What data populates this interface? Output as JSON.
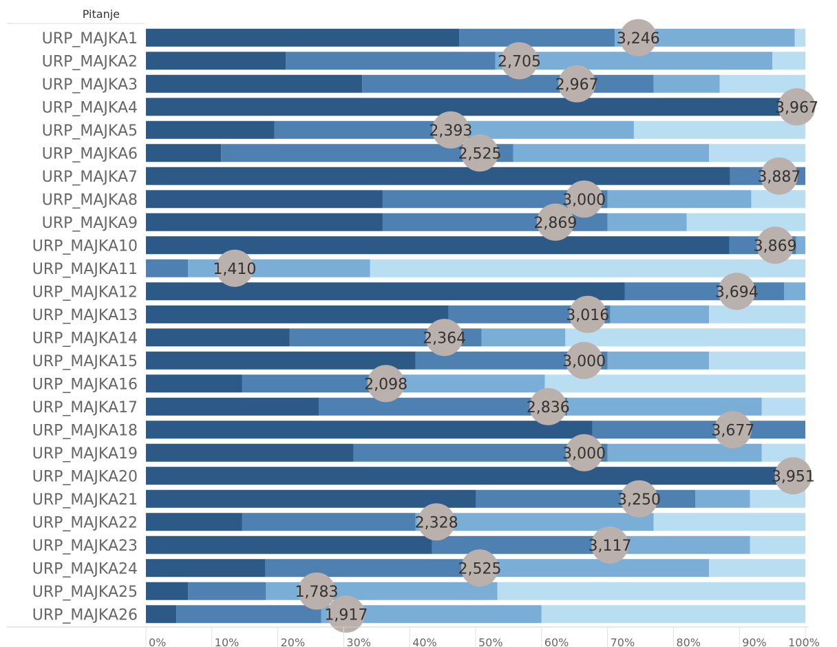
{
  "header": {
    "row_field_label": "Pitanje"
  },
  "chart_data": {
    "type": "bar",
    "orientation": "horizontal",
    "stacked": "percent",
    "categories": [
      "URP_MAJKA1",
      "URP_MAJKA2",
      "URP_MAJKA3",
      "URP_MAJKA4",
      "URP_MAJKA5",
      "URP_MAJKA6",
      "URP_MAJKA7",
      "URP_MAJKA8",
      "URP_MAJKA9",
      "URP_MAJKA10",
      "URP_MAJKA11",
      "URP_MAJKA12",
      "URP_MAJKA13",
      "URP_MAJKA14",
      "URP_MAJKA15",
      "URP_MAJKA16",
      "URP_MAJKA17",
      "URP_MAJKA18",
      "URP_MAJKA19",
      "URP_MAJKA20",
      "URP_MAJKA21",
      "URP_MAJKA22",
      "URP_MAJKA23",
      "URP_MAJKA24",
      "URP_MAJKA25",
      "URP_MAJKA26"
    ],
    "segment_colors": [
      "#2c5985",
      "#4e81b2",
      "#7aaed6",
      "#b9ddf1"
    ],
    "segments": [
      [
        47.5,
        71.1,
        0,
        0
      ],
      [
        21.2,
        53.0,
        95.0,
        100
      ],
      [
        32.8,
        77.0,
        87.0,
        100
      ],
      [
        100,
        100,
        100,
        100
      ],
      [
        19.5,
        46.0,
        74.0,
        100
      ],
      [
        11.4,
        55.7,
        85.4,
        100
      ],
      [
        88.6,
        100,
        100,
        100
      ],
      [
        35.9,
        70.0,
        91.8,
        100
      ],
      [
        35.9,
        70.0,
        82.0,
        100
      ],
      [
        88.5,
        98.6,
        100,
        100
      ],
      [
        0,
        6.4,
        34.0,
        100
      ],
      [
        72.6,
        96.8,
        100,
        100
      ],
      [
        45.9,
        70.4,
        85.4,
        100
      ],
      [
        21.8,
        50.9,
        63.6,
        100
      ],
      [
        40.9,
        70.0,
        85.4,
        100
      ],
      [
        14.6,
        34.3,
        60.5,
        100
      ],
      [
        26.2,
        63.9,
        93.4,
        100
      ],
      [
        67.7,
        100,
        100,
        100
      ],
      [
        31.5,
        70.0,
        93.4,
        100
      ],
      [
        100,
        100,
        100,
        100
      ],
      [
        50.0,
        83.3,
        91.6,
        100
      ],
      [
        14.6,
        40.9,
        77.0,
        100
      ],
      [
        43.4,
        72.0,
        91.6,
        100
      ],
      [
        18.1,
        49.2,
        85.4,
        100
      ],
      [
        6.4,
        18.2,
        53.3,
        100
      ],
      [
        4.6,
        26.6,
        60.0,
        100
      ]
    ],
    "segment1_override": [
      [
        47.5,
        71.1,
        98.4,
        100
      ]
    ],
    "means": [
      3.246,
      2.705,
      2.967,
      3.967,
      2.393,
      2.525,
      3.887,
      3.0,
      2.869,
      3.869,
      1.41,
      3.694,
      3.016,
      2.364,
      3.0,
      2.098,
      2.836,
      3.677,
      3.0,
      3.951,
      3.25,
      2.328,
      3.117,
      2.525,
      1.783,
      1.917
    ],
    "mean_labels": [
      "3,246",
      "2,705",
      "2,967",
      "3,967",
      "2,393",
      "2,525",
      "3,887",
      "3,000",
      "2,869",
      "3,869",
      "1,410",
      "3,694",
      "3,016",
      "2,364",
      "3,000",
      "2,098",
      "2,836",
      "3,677",
      "3,000",
      "3,951",
      "3,250",
      "2,328",
      "3,117",
      "2,525",
      "1,783",
      "1,917"
    ],
    "mean_scale": [
      1,
      4
    ],
    "marker_color": "#bab0ac",
    "x_ticks": [
      "0%",
      "10%",
      "20%",
      "30%",
      "40%",
      "50%",
      "60%",
      "70%",
      "80%",
      "90%",
      "100%"
    ],
    "xlim": [
      0,
      100
    ],
    "grid": false
  }
}
